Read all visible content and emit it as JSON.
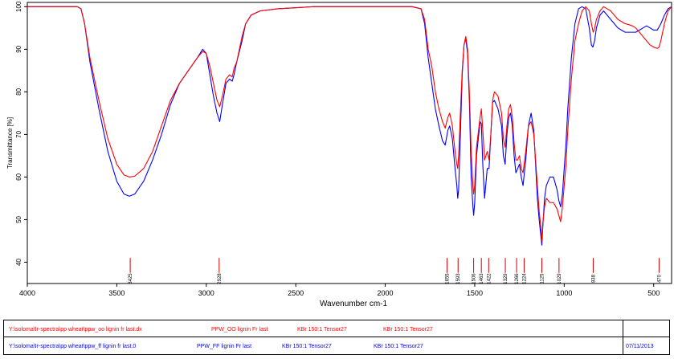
{
  "chart_data": {
    "type": "line",
    "xlabel": "Wavenumber cm-1",
    "ylabel": "Transmittance [%]",
    "xlim": [
      4000,
      400
    ],
    "ylim": [
      35,
      101
    ],
    "x_ticks": [
      4000,
      3500,
      3000,
      2500,
      2000,
      1500,
      1000,
      500
    ],
    "y_ticks": [
      40,
      50,
      60,
      70,
      80,
      90,
      100
    ],
    "series": [
      {
        "color": "#ff0000",
        "points": [
          [
            4000,
            100
          ],
          [
            3800,
            100
          ],
          [
            3720,
            100
          ],
          [
            3700,
            99.5
          ],
          [
            3680,
            96
          ],
          [
            3650,
            88
          ],
          [
            3600,
            78
          ],
          [
            3550,
            69
          ],
          [
            3500,
            63
          ],
          [
            3460,
            60.5
          ],
          [
            3430,
            60
          ],
          [
            3400,
            60.2
          ],
          [
            3350,
            62
          ],
          [
            3300,
            66
          ],
          [
            3250,
            72
          ],
          [
            3200,
            78
          ],
          [
            3150,
            82
          ],
          [
            3100,
            85
          ],
          [
            3050,
            88
          ],
          [
            3020,
            89.5
          ],
          [
            3000,
            89
          ],
          [
            2980,
            86
          ],
          [
            2960,
            82
          ],
          [
            2940,
            78
          ],
          [
            2925,
            76.5
          ],
          [
            2910,
            79
          ],
          [
            2890,
            83
          ],
          [
            2870,
            84
          ],
          [
            2855,
            83.5
          ],
          [
            2845,
            85.5
          ],
          [
            2830,
            87
          ],
          [
            2800,
            93
          ],
          [
            2780,
            96
          ],
          [
            2750,
            98
          ],
          [
            2700,
            99
          ],
          [
            2600,
            99.5
          ],
          [
            2400,
            100
          ],
          [
            2200,
            100
          ],
          [
            2000,
            100
          ],
          [
            1850,
            100
          ],
          [
            1800,
            99.5
          ],
          [
            1780,
            97
          ],
          [
            1760,
            90
          ],
          [
            1740,
            86
          ],
          [
            1720,
            80
          ],
          [
            1700,
            76
          ],
          [
            1680,
            73
          ],
          [
            1665,
            71.5
          ],
          [
            1650,
            74
          ],
          [
            1640,
            75
          ],
          [
            1625,
            72
          ],
          [
            1610,
            66
          ],
          [
            1600,
            63
          ],
          [
            1595,
            62
          ],
          [
            1590,
            65
          ],
          [
            1580,
            75
          ],
          [
            1570,
            85
          ],
          [
            1560,
            91
          ],
          [
            1550,
            93
          ],
          [
            1540,
            90
          ],
          [
            1530,
            80
          ],
          [
            1520,
            66
          ],
          [
            1510,
            58
          ],
          [
            1506,
            56
          ],
          [
            1500,
            58
          ],
          [
            1490,
            67
          ],
          [
            1470,
            74
          ],
          [
            1463,
            76
          ],
          [
            1455,
            71
          ],
          [
            1445,
            64
          ],
          [
            1430,
            66
          ],
          [
            1420,
            64
          ],
          [
            1410,
            70
          ],
          [
            1400,
            78
          ],
          [
            1390,
            80
          ],
          [
            1370,
            79
          ],
          [
            1350,
            75
          ],
          [
            1340,
            69
          ],
          [
            1330,
            67
          ],
          [
            1320,
            72
          ],
          [
            1310,
            76
          ],
          [
            1300,
            77
          ],
          [
            1290,
            74
          ],
          [
            1280,
            68
          ],
          [
            1270,
            64
          ],
          [
            1260,
            64
          ],
          [
            1250,
            65
          ],
          [
            1240,
            62
          ],
          [
            1230,
            61
          ],
          [
            1215,
            66
          ],
          [
            1200,
            72
          ],
          [
            1185,
            73
          ],
          [
            1170,
            70
          ],
          [
            1160,
            64
          ],
          [
            1150,
            58
          ],
          [
            1140,
            52
          ],
          [
            1130,
            48
          ],
          [
            1125,
            45
          ],
          [
            1120,
            49
          ],
          [
            1110,
            53
          ],
          [
            1100,
            55
          ],
          [
            1080,
            54
          ],
          [
            1060,
            54
          ],
          [
            1040,
            52.5
          ],
          [
            1030,
            51
          ],
          [
            1020,
            49.5
          ],
          [
            1010,
            53
          ],
          [
            990,
            63
          ],
          [
            980,
            71
          ],
          [
            960,
            83
          ],
          [
            940,
            92
          ],
          [
            920,
            96
          ],
          [
            900,
            99
          ],
          [
            880,
            100
          ],
          [
            860,
            99
          ],
          [
            848,
            96
          ],
          [
            838,
            94
          ],
          [
            830,
            95
          ],
          [
            820,
            97
          ],
          [
            800,
            99
          ],
          [
            780,
            100
          ],
          [
            760,
            99.5
          ],
          [
            740,
            99
          ],
          [
            720,
            98
          ],
          [
            700,
            97
          ],
          [
            680,
            96.5
          ],
          [
            660,
            96
          ],
          [
            640,
            95.8
          ],
          [
            620,
            95.5
          ],
          [
            600,
            95
          ],
          [
            580,
            94
          ],
          [
            560,
            93
          ],
          [
            540,
            92
          ],
          [
            520,
            91
          ],
          [
            500,
            90.5
          ],
          [
            480,
            90.2
          ],
          [
            470,
            90.5
          ],
          [
            460,
            92
          ],
          [
            440,
            96
          ],
          [
            420,
            99
          ],
          [
            400,
            100
          ]
        ]
      },
      {
        "color": "#0000ff",
        "points": [
          [
            4000,
            100
          ],
          [
            3800,
            100
          ],
          [
            3720,
            100
          ],
          [
            3700,
            99.5
          ],
          [
            3680,
            96
          ],
          [
            3650,
            87
          ],
          [
            3600,
            76
          ],
          [
            3550,
            66
          ],
          [
            3500,
            59
          ],
          [
            3460,
            56
          ],
          [
            3430,
            55.5
          ],
          [
            3400,
            56
          ],
          [
            3350,
            59
          ],
          [
            3300,
            64
          ],
          [
            3250,
            70
          ],
          [
            3200,
            77
          ],
          [
            3150,
            82
          ],
          [
            3100,
            85
          ],
          [
            3050,
            88
          ],
          [
            3020,
            90
          ],
          [
            3000,
            89
          ],
          [
            2980,
            84
          ],
          [
            2960,
            79
          ],
          [
            2940,
            75
          ],
          [
            2925,
            73
          ],
          [
            2910,
            77
          ],
          [
            2890,
            82
          ],
          [
            2870,
            83
          ],
          [
            2855,
            82.5
          ],
          [
            2845,
            84
          ],
          [
            2830,
            87
          ],
          [
            2800,
            92
          ],
          [
            2780,
            96
          ],
          [
            2750,
            98
          ],
          [
            2700,
            99
          ],
          [
            2600,
            99.5
          ],
          [
            2400,
            100
          ],
          [
            2200,
            100
          ],
          [
            2000,
            100
          ],
          [
            1850,
            100
          ],
          [
            1800,
            99.5
          ],
          [
            1780,
            96
          ],
          [
            1760,
            88
          ],
          [
            1740,
            82
          ],
          [
            1720,
            76
          ],
          [
            1700,
            72
          ],
          [
            1680,
            68.5
          ],
          [
            1665,
            67.5
          ],
          [
            1650,
            71
          ],
          [
            1640,
            72
          ],
          [
            1625,
            69
          ],
          [
            1610,
            62
          ],
          [
            1600,
            58
          ],
          [
            1595,
            55
          ],
          [
            1590,
            57
          ],
          [
            1580,
            70
          ],
          [
            1570,
            84
          ],
          [
            1560,
            91
          ],
          [
            1550,
            92.5
          ],
          [
            1540,
            89
          ],
          [
            1530,
            78
          ],
          [
            1520,
            60
          ],
          [
            1510,
            53
          ],
          [
            1506,
            51
          ],
          [
            1500,
            54
          ],
          [
            1490,
            65
          ],
          [
            1470,
            73
          ],
          [
            1463,
            72.5
          ],
          [
            1455,
            63
          ],
          [
            1445,
            55
          ],
          [
            1430,
            62
          ],
          [
            1420,
            62
          ],
          [
            1410,
            70
          ],
          [
            1400,
            77.5
          ],
          [
            1390,
            78
          ],
          [
            1370,
            76
          ],
          [
            1350,
            72
          ],
          [
            1340,
            65
          ],
          [
            1330,
            63
          ],
          [
            1320,
            70
          ],
          [
            1310,
            74
          ],
          [
            1300,
            75
          ],
          [
            1290,
            72
          ],
          [
            1280,
            65
          ],
          [
            1270,
            61
          ],
          [
            1260,
            62
          ],
          [
            1250,
            63
          ],
          [
            1240,
            60
          ],
          [
            1230,
            58
          ],
          [
            1215,
            64
          ],
          [
            1200,
            72
          ],
          [
            1185,
            75
          ],
          [
            1170,
            71
          ],
          [
            1160,
            63
          ],
          [
            1150,
            55
          ],
          [
            1140,
            50
          ],
          [
            1130,
            46
          ],
          [
            1125,
            44
          ],
          [
            1120,
            48
          ],
          [
            1110,
            55
          ],
          [
            1100,
            58
          ],
          [
            1080,
            60
          ],
          [
            1060,
            60
          ],
          [
            1040,
            57
          ],
          [
            1030,
            54.5
          ],
          [
            1020,
            53
          ],
          [
            1010,
            56
          ],
          [
            990,
            68
          ],
          [
            980,
            76
          ],
          [
            960,
            88
          ],
          [
            940,
            96
          ],
          [
            920,
            99.5
          ],
          [
            900,
            100
          ],
          [
            880,
            99.5
          ],
          [
            860,
            95
          ],
          [
            848,
            91
          ],
          [
            840,
            90.5
          ],
          [
            830,
            92
          ],
          [
            820,
            95
          ],
          [
            800,
            98
          ],
          [
            780,
            99
          ],
          [
            760,
            98
          ],
          [
            740,
            97
          ],
          [
            720,
            96
          ],
          [
            700,
            95
          ],
          [
            680,
            94.5
          ],
          [
            660,
            94
          ],
          [
            640,
            94
          ],
          [
            620,
            94
          ],
          [
            600,
            94
          ],
          [
            580,
            94.5
          ],
          [
            560,
            95
          ],
          [
            540,
            95.5
          ],
          [
            520,
            95
          ],
          [
            500,
            94.5
          ],
          [
            480,
            94.5
          ],
          [
            460,
            96
          ],
          [
            440,
            98
          ],
          [
            420,
            99.5
          ],
          [
            400,
            100
          ]
        ]
      }
    ],
    "peak_labels": [
      "3425",
      "2928",
      "1655",
      "1593",
      "1506",
      "1463",
      "1422",
      "1329",
      "1266",
      "1224",
      "1125",
      "1029",
      "838",
      "470"
    ],
    "peak_positions": [
      3425,
      2928,
      1655,
      1593,
      1506,
      1463,
      1422,
      1329,
      1266,
      1224,
      1125,
      1029,
      838,
      470
    ],
    "peak_marker_color": "#cc0000"
  },
  "footer": {
    "row1": {
      "path": "Y:\\soloma\\Ir-spectra\\pp wheat\\ppw_oo lignin fr last.dx",
      "sample": "PPW_OO lignin Fr last",
      "method1": "KBr 150:1  Tensor27",
      "method2": "KBr 150:1  Tensor27",
      "date": "",
      "color": "#ff0000"
    },
    "row2": {
      "path": "Y:\\soloma\\Ir-spectra\\pp wheat\\ppw_ff lignin fr last.0",
      "sample": "PPW_FF lignin Fr last",
      "method1": "KBr 150:1  Tensor27",
      "method2": "KBr 150:1  Tensor27",
      "date": "07/11/2013",
      "color": "#0000ff"
    }
  }
}
